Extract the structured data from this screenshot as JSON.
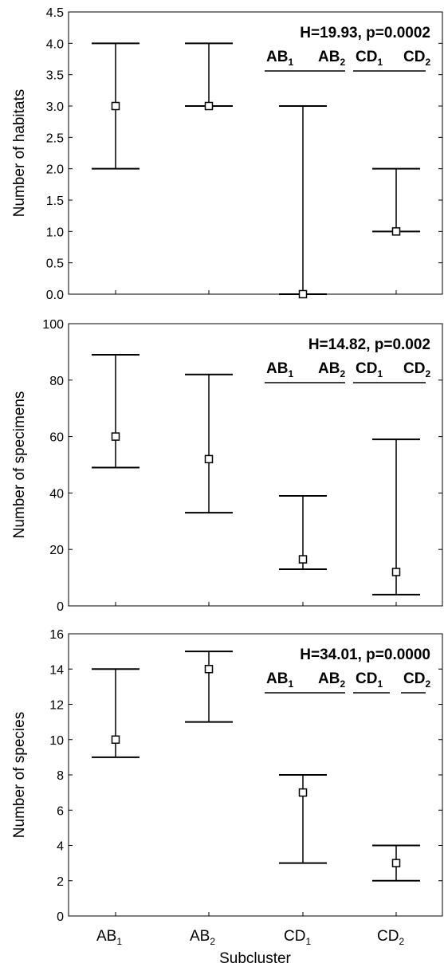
{
  "chart_data": [
    {
      "type": "range",
      "ylabel": "Number of habitats",
      "ylim": [
        0,
        4.5
      ],
      "yticks": [
        "0.0",
        "0.5",
        "1.0",
        "1.5",
        "2.0",
        "2.5",
        "3.0",
        "3.5",
        "4.0",
        "4.5"
      ],
      "categories": [
        "AB1",
        "AB2",
        "CD1",
        "CD2"
      ],
      "median": [
        3,
        3,
        0,
        1
      ],
      "low": [
        2,
        3,
        0,
        1
      ],
      "high": [
        4,
        4,
        3,
        2
      ],
      "stat": "H=19.93, p=0.0002",
      "groups_text": [
        {
          "t": "AB",
          "s": "1"
        },
        {
          "t": "AB",
          "s": "2"
        },
        {
          "t": "CD",
          "s": "1"
        },
        {
          "t": "CD",
          "s": "2"
        }
      ],
      "groups_lines": [
        [
          0,
          1
        ],
        [
          2,
          3
        ]
      ]
    },
    {
      "type": "range",
      "ylabel": "Number of specimens",
      "ylim": [
        0,
        100
      ],
      "yticks": [
        "0",
        "20",
        "40",
        "60",
        "80",
        "100"
      ],
      "categories": [
        "AB1",
        "AB2",
        "CD1",
        "CD2"
      ],
      "median": [
        60,
        52,
        16.5,
        12
      ],
      "low": [
        49,
        33,
        13,
        4
      ],
      "high": [
        89,
        82,
        39,
        59
      ],
      "stat": "H=14.82, p=0.002",
      "groups_text": [
        {
          "t": "AB",
          "s": "1"
        },
        {
          "t": "AB",
          "s": "2"
        },
        {
          "t": "CD",
          "s": "1"
        },
        {
          "t": "CD",
          "s": "2"
        }
      ],
      "groups_lines": [
        [
          0,
          1
        ],
        [
          2,
          3
        ]
      ]
    },
    {
      "type": "range",
      "ylabel": "Number of species",
      "ylim": [
        0,
        16
      ],
      "yticks": [
        "0",
        "2",
        "4",
        "6",
        "8",
        "10",
        "12",
        "14",
        "16"
      ],
      "categories": [
        "AB1",
        "AB2",
        "CD1",
        "CD2"
      ],
      "median": [
        10,
        14,
        7,
        3
      ],
      "low": [
        9,
        11,
        3,
        2
      ],
      "high": [
        14,
        15,
        8,
        4
      ],
      "stat": "H=34.01, p=0.0000",
      "groups_text": [
        {
          "t": "AB",
          "s": "1"
        },
        {
          "t": "AB",
          "s": "2"
        },
        {
          "t": "CD",
          "s": "1"
        },
        {
          "t": "CD",
          "s": "2"
        }
      ],
      "groups_lines": [
        [
          0,
          1
        ],
        [
          2
        ],
        [
          3
        ]
      ]
    }
  ],
  "x_axis": {
    "label": "Subcluster",
    "ticks": [
      {
        "t": "AB",
        "s": "1"
      },
      {
        "t": "AB",
        "s": "2"
      },
      {
        "t": "CD",
        "s": "1"
      },
      {
        "t": "CD",
        "s": "2"
      }
    ]
  }
}
